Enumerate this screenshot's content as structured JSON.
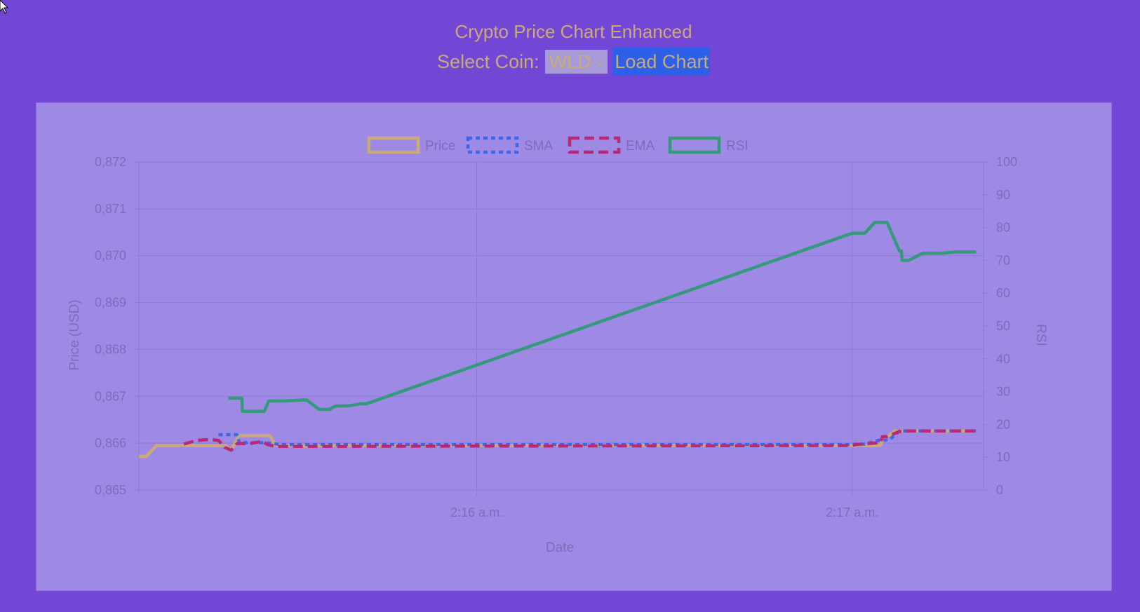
{
  "header": {
    "title": "Crypto Price Chart Enhanced",
    "select_label": "Select Coin:",
    "selected_coin": "WLD",
    "load_button": "Load Chart"
  },
  "colors": {
    "background": "#7347d6",
    "chart_bg": "#9e89e4",
    "price": "#c9a978",
    "sma": "#3d67ea",
    "ema": "#b62a78",
    "rsi": "#339a7c",
    "axis_text": "#7f6bb9",
    "button": "#2d5fe9"
  },
  "chart_data": {
    "type": "line",
    "xlabel": "Date",
    "ylabel": "Price (USD)",
    "y2label": "RSI",
    "x_ticks": [
      "2:16 a.m.",
      "2:17 a.m."
    ],
    "x_tick_minutes": [
      1.0,
      2.0
    ],
    "xlim_minutes": [
      0.1,
      2.35
    ],
    "ylim": [
      0.865,
      0.872
    ],
    "y_ticks": [
      "0,865",
      "0,866",
      "0,867",
      "0,868",
      "0,869",
      "0,870",
      "0,871",
      "0,872"
    ],
    "y_tick_values": [
      0.865,
      0.866,
      0.867,
      0.868,
      0.869,
      0.87,
      0.871,
      0.872
    ],
    "y2lim": [
      0,
      100
    ],
    "y2_ticks": [
      "0",
      "10",
      "20",
      "30",
      "40",
      "50",
      "60",
      "70",
      "80",
      "90",
      "100"
    ],
    "y2_tick_values": [
      0,
      10,
      20,
      30,
      40,
      50,
      60,
      70,
      80,
      90,
      100
    ],
    "grid": true,
    "legend_position": "top",
    "legend": [
      "Price",
      "SMA",
      "EMA",
      "RSI"
    ],
    "series": [
      {
        "name": "Price",
        "axis": "left",
        "style": "solid",
        "points": [
          [
            0.1,
            0.86572
          ],
          [
            0.12,
            0.86572
          ],
          [
            0.147,
            0.86595
          ],
          [
            0.169,
            0.86595
          ],
          [
            0.209,
            0.86595
          ],
          [
            0.218,
            0.86595
          ],
          [
            0.223,
            0.86595
          ],
          [
            0.229,
            0.86595
          ],
          [
            0.242,
            0.86595
          ],
          [
            0.243,
            0.86595
          ],
          [
            0.257,
            0.86595
          ],
          [
            0.27,
            0.86595
          ],
          [
            0.29,
            0.86595
          ],
          [
            0.312,
            0.86595
          ],
          [
            0.331,
            0.86595
          ],
          [
            0.346,
            0.86586
          ],
          [
            0.367,
            0.86616
          ],
          [
            0.383,
            0.86616
          ],
          [
            0.402,
            0.86616
          ],
          [
            0.413,
            0.86616
          ],
          [
            0.429,
            0.86616
          ],
          [
            0.44,
            0.86616
          ],
          [
            0.449,
            0.86616
          ],
          [
            0.464,
            0.86595
          ],
          [
            0.478,
            0.86595
          ],
          [
            0.524,
            0.86595
          ],
          [
            0.551,
            0.86593
          ],
          [
            0.598,
            0.86595
          ],
          [
            0.656,
            0.86595
          ],
          [
            0.694,
            0.86595
          ],
          [
            0.737,
            0.86595
          ],
          [
            0.854,
            0.86595
          ],
          [
            0.864,
            0.86595
          ],
          [
            1.0,
            0.86595
          ],
          [
            1.187,
            0.86595
          ],
          [
            2.0,
            0.86595
          ],
          [
            2.01,
            0.86595
          ],
          [
            2.034,
            0.86595
          ],
          [
            2.075,
            0.86595
          ],
          [
            2.081,
            0.86606
          ],
          [
            2.113,
            0.86626
          ],
          [
            2.126,
            0.86626
          ],
          [
            2.131,
            0.86626
          ],
          [
            2.133,
            0.86626
          ],
          [
            2.151,
            0.86626
          ],
          [
            2.187,
            0.86626
          ],
          [
            2.237,
            0.86626
          ],
          [
            2.276,
            0.86626
          ],
          [
            2.33,
            0.86626
          ]
        ]
      },
      {
        "name": "SMA",
        "axis": "left",
        "style": "dotted",
        "points": [
          [
            0.312,
            0.86618
          ],
          [
            0.329,
            0.86618
          ],
          [
            0.361,
            0.86618
          ],
          [
            0.368,
            0.86601
          ],
          [
            0.383,
            0.86601
          ],
          [
            0.396,
            0.86601
          ],
          [
            0.435,
            0.86601
          ],
          [
            0.478,
            0.86597
          ],
          [
            0.524,
            0.86597
          ],
          [
            0.598,
            0.86597
          ],
          [
            0.656,
            0.86597
          ],
          [
            0.694,
            0.86597
          ],
          [
            0.737,
            0.86597
          ],
          [
            0.854,
            0.86597
          ],
          [
            1.0,
            0.86597
          ],
          [
            1.187,
            0.86597
          ],
          [
            2.0,
            0.86597
          ],
          [
            2.01,
            0.86598
          ],
          [
            2.034,
            0.86598
          ],
          [
            2.075,
            0.86607
          ],
          [
            2.081,
            0.86607
          ],
          [
            2.099,
            0.86607
          ],
          [
            2.126,
            0.86626
          ],
          [
            2.133,
            0.86626
          ],
          [
            2.151,
            0.86626
          ],
          [
            2.187,
            0.86626
          ],
          [
            2.237,
            0.86626
          ],
          [
            2.276,
            0.86626
          ],
          [
            2.33,
            0.86626
          ]
        ]
      },
      {
        "name": "EMA",
        "axis": "left",
        "style": "dashed",
        "points": [
          [
            0.22,
            0.86598
          ],
          [
            0.254,
            0.86606
          ],
          [
            0.29,
            0.86608
          ],
          [
            0.312,
            0.86606
          ],
          [
            0.329,
            0.86591
          ],
          [
            0.346,
            0.86585
          ],
          [
            0.361,
            0.86599
          ],
          [
            0.383,
            0.86599
          ],
          [
            0.396,
            0.86599
          ],
          [
            0.429,
            0.86604
          ],
          [
            0.442,
            0.86597
          ],
          [
            0.464,
            0.86593
          ],
          [
            0.51,
            0.86593
          ],
          [
            0.598,
            0.86593
          ],
          [
            1.0,
            0.86594
          ],
          [
            1.187,
            0.86594
          ],
          [
            2.0,
            0.86595
          ],
          [
            2.01,
            0.86597
          ],
          [
            2.075,
            0.86601
          ],
          [
            2.081,
            0.86614
          ],
          [
            2.093,
            0.86614
          ],
          [
            2.126,
            0.86625
          ],
          [
            2.133,
            0.86625
          ],
          [
            2.151,
            0.86626
          ],
          [
            2.187,
            0.86626
          ],
          [
            2.237,
            0.86626
          ],
          [
            2.276,
            0.86626
          ],
          [
            2.33,
            0.86626
          ]
        ]
      },
      {
        "name": "RSI",
        "axis": "right",
        "style": "solid",
        "points": [
          [
            0.338,
            0.86696
          ],
          [
            0.374,
            0.86696
          ],
          [
            0.376,
            0.86668
          ],
          [
            0.395,
            0.86668
          ],
          [
            0.434,
            0.86668
          ],
          [
            0.446,
            0.8669
          ],
          [
            0.49,
            0.8669
          ],
          [
            0.536,
            0.86692
          ],
          [
            0.547,
            0.86692
          ],
          [
            0.58,
            0.86672
          ],
          [
            0.608,
            0.86672
          ],
          [
            0.623,
            0.86679
          ],
          [
            0.66,
            0.8668
          ],
          [
            0.691,
            0.86684
          ],
          [
            0.706,
            0.86684
          ],
          [
            2.0,
            0.87048
          ],
          [
            2.034,
            0.87048
          ],
          [
            2.06,
            0.87071
          ],
          [
            2.093,
            0.87071
          ],
          [
            2.126,
            0.8701
          ],
          [
            2.131,
            0.8701
          ],
          [
            2.133,
            0.8699
          ],
          [
            2.151,
            0.8699
          ],
          [
            2.187,
            0.87005
          ],
          [
            2.237,
            0.87005
          ],
          [
            2.276,
            0.87008
          ],
          [
            2.33,
            0.87008
          ]
        ]
      }
    ]
  }
}
